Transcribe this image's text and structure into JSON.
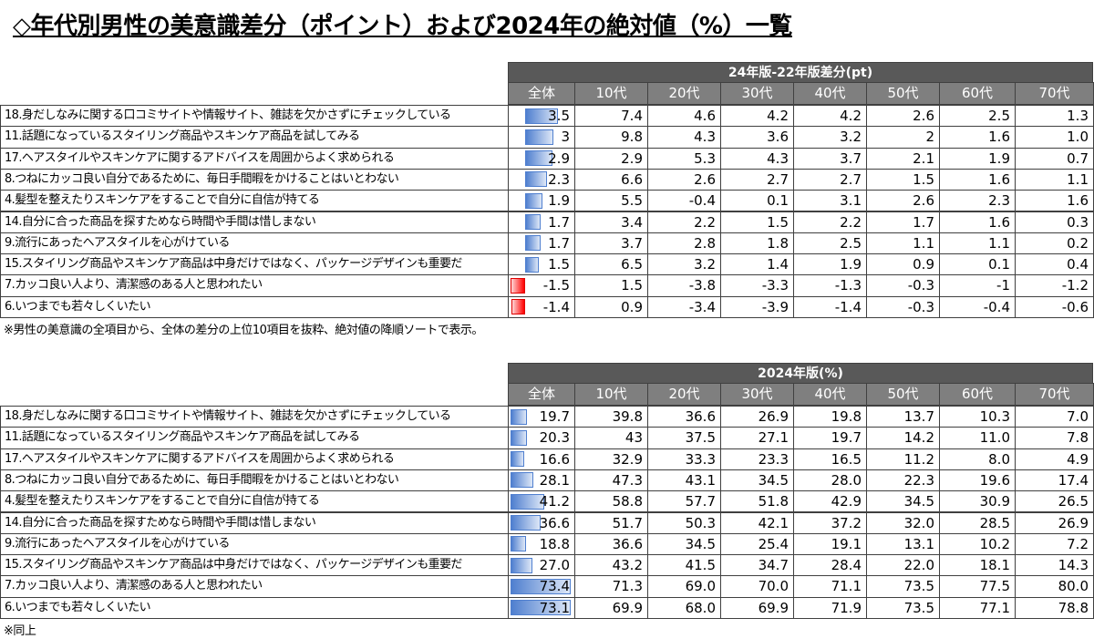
{
  "title": "◇年代別男性の美意識差分（ポイント）および2024年の絶対値（%）一覧",
  "tables": [
    {
      "caption": "24年版-22年版差分(pt)",
      "columns": [
        "全体",
        "10代",
        "20代",
        "30代",
        "40代",
        "50代",
        "60代",
        "70代"
      ],
      "rows": [
        {
          "label": "18.身だしなみに関する口コミサイトや情報サイト、雑誌を欠かさずにチェックしている",
          "values": [
            3.5,
            7.4,
            4.6,
            4.2,
            4.2,
            2.6,
            2.5,
            1.3
          ]
        },
        {
          "label": "11.話題になっているスタイリング商品やスキンケア商品を試してみる",
          "values": [
            3.0,
            9.8,
            4.3,
            3.6,
            3.2,
            2.0,
            1.6,
            {
              "value": 1,
              "label": "1.0"
            }
          ]
        },
        {
          "label": "17.ヘアスタイルやスキンケアに関するアドバイスを周囲からよく求められる",
          "values": [
            2.9,
            2.9,
            5.3,
            4.3,
            3.7,
            2.1,
            1.9,
            0.7
          ]
        },
        {
          "label": "8.つねにカッコ良い自分であるために、毎日手間暇をかけることはいとわない",
          "values": [
            2.3,
            6.6,
            2.6,
            2.7,
            2.7,
            1.5,
            1.6,
            1.1
          ]
        },
        {
          "label": "4.髪型を整えたりスキンケアをすることで自分に自信が持てる",
          "values": [
            1.9,
            5.5,
            -0.4,
            0.1,
            3.1,
            2.6,
            2.3,
            1.6
          ]
        },
        {
          "label": "14.自分に合った商品を探すためなら時間や手間は惜しまない",
          "values": [
            1.7,
            3.4,
            2.2,
            1.5,
            2.2,
            1.7,
            1.6,
            0.3
          ]
        },
        {
          "label": "9.流行にあったヘアスタイルを心がけている",
          "values": [
            1.7,
            3.7,
            2.8,
            1.8,
            2.5,
            1.1,
            1.1,
            0.2
          ]
        },
        {
          "label": "15.スタイリング商品やスキンケア商品は中身だけではなく、パッケージデザインも重要だ",
          "values": [
            1.5,
            6.5,
            3.2,
            1.4,
            1.9,
            0.9,
            0.1,
            0.4
          ]
        },
        {
          "label": "7.カッコ良い人より、清潔感のある人と思われたい",
          "values": [
            -1.5,
            1.5,
            -3.8,
            -3.3,
            -1.3,
            -0.3,
            -1.0,
            -1.2
          ]
        },
        {
          "label": "6.いつまでも若々しくいたい",
          "values": [
            -1.4,
            0.9,
            -3.4,
            -3.9,
            -1.4,
            -0.3,
            -0.4,
            -0.6
          ]
        }
      ],
      "note": "※男性の美意識の全項目から、全体の差分の上位10項目を抜粋、絶対値の降順ソートで表示。"
    },
    {
      "caption": "2024年版(%)",
      "columns": [
        "全体",
        "10代",
        "20代",
        "30代",
        "40代",
        "50代",
        "60代",
        "70代"
      ],
      "rows": [
        {
          "label": "18.身だしなみに関する口コミサイトや情報サイト、雑誌を欠かさずにチェックしている",
          "values": [
            19.7,
            39.8,
            36.6,
            26.9,
            19.8,
            13.7,
            10.3,
            {
              "value": 7,
              "label": "7.0"
            }
          ]
        },
        {
          "label": "11.話題になっているスタイリング商品やスキンケア商品を試してみる",
          "values": [
            20.3,
            43.0,
            37.5,
            27.1,
            19.7,
            14.2,
            {
              "value": 11,
              "label": "11.0"
            },
            7.8
          ]
        },
        {
          "label": "17.ヘアスタイルやスキンケアに関するアドバイスを周囲からよく求められる",
          "values": [
            16.6,
            32.9,
            33.3,
            23.3,
            16.5,
            11.2,
            {
              "value": 8,
              "label": "8.0"
            },
            4.9
          ]
        },
        {
          "label": "8.つねにカッコ良い自分であるために、毎日手間暇をかけることはいとわない",
          "values": [
            28.1,
            47.3,
            43.1,
            34.5,
            {
              "value": 28,
              "label": "28.0"
            },
            22.3,
            19.6,
            17.4
          ]
        },
        {
          "label": "4.髪型を整えたりスキンケアをすることで自分に自信が持てる",
          "values": [
            41.2,
            58.8,
            57.7,
            51.8,
            42.9,
            34.5,
            30.9,
            26.5
          ]
        },
        {
          "label": "14.自分に合った商品を探すためなら時間や手間は惜しまない",
          "values": [
            36.6,
            51.7,
            50.3,
            42.1,
            37.2,
            {
              "value": 32,
              "label": "32.0"
            },
            28.5,
            26.9
          ]
        },
        {
          "label": "9.流行にあったヘアスタイルを心がけている",
          "values": [
            18.8,
            36.6,
            34.5,
            25.4,
            19.1,
            13.1,
            10.2,
            7.2
          ]
        },
        {
          "label": "15.スタイリング商品やスキンケア商品は中身だけではなく、パッケージデザインも重要だ",
          "values": [
            {
              "value": 27,
              "label": "27.0"
            },
            43.2,
            41.5,
            34.7,
            28.4,
            {
              "value": 22,
              "label": "22.0"
            },
            18.1,
            14.3
          ]
        },
        {
          "label": "7.カッコ良い人より、清潔感のある人と思われたい",
          "values": [
            73.4,
            71.3,
            {
              "value": 69,
              "label": "69.0"
            },
            {
              "value": 70,
              "label": "70.0"
            },
            71.1,
            73.5,
            77.5,
            {
              "value": 80,
              "label": "80.0"
            }
          ]
        },
        {
          "label": "6.いつまでも若々しくいたい",
          "values": [
            73.1,
            69.9,
            {
              "value": 68,
              "label": "68.0"
            },
            69.9,
            71.9,
            73.5,
            77.1,
            78.8
          ]
        }
      ],
      "note": "※同上"
    }
  ]
}
